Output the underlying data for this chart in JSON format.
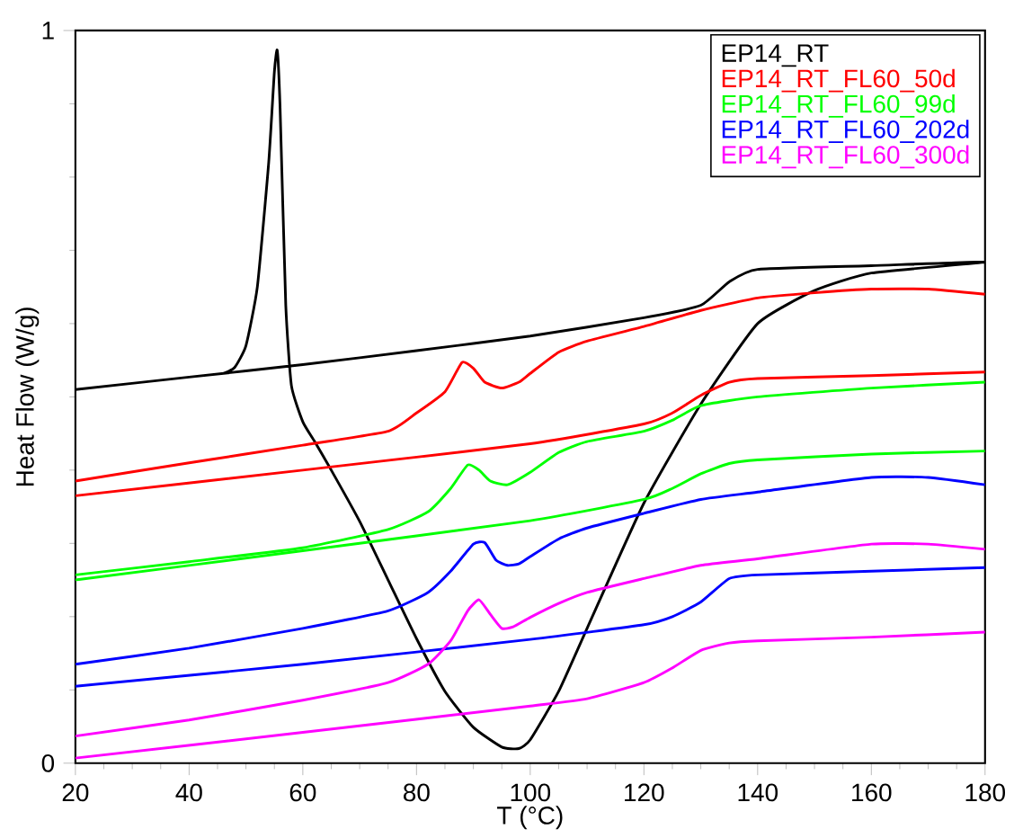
{
  "chart_data": {
    "type": "line",
    "xlabel": "T (°C)",
    "ylabel": "Heat Flow (W/g)",
    "xlim": [
      20,
      180
    ],
    "ylim": [
      0,
      1
    ],
    "xticks": [
      20,
      {
        "value": 25,
        "label": null
      },
      {
        "value": 30,
        "label": null
      },
      {
        "value": 35,
        "label": null
      },
      40,
      {
        "value": 45,
        "label": null
      },
      {
        "value": 50,
        "label": null
      },
      {
        "value": 55,
        "label": null
      },
      60,
      {
        "value": 65,
        "label": null
      },
      {
        "value": 70,
        "label": null
      },
      {
        "value": 75,
        "label": null
      },
      80,
      {
        "value": 85,
        "label": null
      },
      {
        "value": 90,
        "label": null
      },
      {
        "value": 95,
        "label": null
      },
      100,
      {
        "value": 105,
        "label": null
      },
      {
        "value": 110,
        "label": null
      },
      {
        "value": 115,
        "label": null
      },
      120,
      {
        "value": 125,
        "label": null
      },
      {
        "value": 130,
        "label": null
      },
      {
        "value": 135,
        "label": null
      },
      140,
      {
        "value": 145,
        "label": null
      },
      {
        "value": 150,
        "label": null
      },
      {
        "value": 155,
        "label": null
      },
      160,
      {
        "value": 165,
        "label": null
      },
      {
        "value": 170,
        "label": null
      },
      {
        "value": 175,
        "label": null
      },
      180
    ],
    "yticks": [
      0,
      {
        "value": 0.1,
        "label": null
      },
      {
        "value": 0.2,
        "label": null
      },
      {
        "value": 0.3,
        "label": null
      },
      {
        "value": 0.4,
        "label": null
      },
      {
        "value": 0.5,
        "label": null
      },
      {
        "value": 0.6,
        "label": null
      },
      {
        "value": 0.7,
        "label": null
      },
      {
        "value": 0.8,
        "label": null
      },
      {
        "value": 0.9,
        "label": null
      },
      1
    ],
    "grid": false,
    "legend": "top right",
    "marker": "none",
    "line_style": "solid",
    "series": [
      {
        "name": "EP14_RT",
        "color": "#000000",
        "x": [
          20,
          40,
          60,
          80,
          100,
          120,
          130,
          135,
          140,
          160,
          180,
          160,
          150,
          140,
          130,
          120,
          110,
          105,
          100,
          98,
          95,
          90,
          85,
          80,
          75,
          70,
          65,
          62,
          60,
          58,
          57,
          56,
          55.5,
          55,
          54,
          52,
          50,
          48,
          46
        ],
        "values": [
          0.51,
          0.527,
          0.544,
          0.563,
          0.583,
          0.608,
          0.625,
          0.657,
          0.674,
          0.679,
          0.684,
          0.669,
          0.645,
          0.6,
          0.49,
          0.355,
          0.184,
          0.098,
          0.032,
          0.02,
          0.022,
          0.049,
          0.098,
          0.17,
          0.25,
          0.33,
          0.4,
          0.44,
          0.466,
          0.515,
          0.625,
          0.895,
          0.973,
          0.944,
          0.82,
          0.65,
          0.57,
          0.54,
          0.532
        ]
      },
      {
        "name": "EP14_RT_FL60_50d",
        "color": "#ff0000",
        "x": [
          20,
          40,
          60,
          75,
          80,
          85,
          88,
          90,
          92,
          95,
          98,
          100,
          105,
          110,
          120,
          130,
          140,
          150,
          160,
          170,
          180
        ],
        "values": [
          0.385,
          0.41,
          0.434,
          0.453,
          0.478,
          0.507,
          0.547,
          0.539,
          0.52,
          0.512,
          0.52,
          0.532,
          0.561,
          0.576,
          0.596,
          0.618,
          0.635,
          0.642,
          0.647,
          0.647,
          0.64
        ]
      },
      {
        "color": "#ff0000",
        "x": [
          20,
          60,
          100,
          120,
          125,
          130,
          135,
          140,
          160,
          180
        ],
        "values": [
          0.365,
          0.4,
          0.436,
          0.463,
          0.478,
          0.502,
          0.52,
          0.525,
          0.529,
          0.534
        ]
      },
      {
        "name": "EP14_RT_FL60_99d",
        "color": "#00ff00",
        "x": [
          20,
          40,
          60,
          75,
          82,
          86,
          89,
          91,
          93,
          96,
          100,
          105,
          110,
          120,
          125,
          130,
          140,
          160,
          180
        ],
        "values": [
          0.257,
          0.275,
          0.294,
          0.319,
          0.343,
          0.375,
          0.407,
          0.4,
          0.385,
          0.38,
          0.397,
          0.424,
          0.439,
          0.453,
          0.468,
          0.488,
          0.5,
          0.512,
          0.52
        ]
      },
      {
        "color": "#00ff00",
        "x": [
          20,
          60,
          100,
          120,
          125,
          130,
          135,
          140,
          160,
          180
        ],
        "values": [
          0.25,
          0.29,
          0.331,
          0.36,
          0.375,
          0.395,
          0.409,
          0.414,
          0.422,
          0.426
        ]
      },
      {
        "name": "EP14_RT_FL60_202d",
        "color": "#0000ff",
        "x": [
          20,
          40,
          60,
          75,
          82,
          86,
          90,
          92,
          94,
          96,
          98,
          100,
          105,
          110,
          120,
          130,
          140,
          160,
          170,
          180
        ],
        "values": [
          0.135,
          0.157,
          0.184,
          0.208,
          0.233,
          0.262,
          0.299,
          0.301,
          0.277,
          0.27,
          0.272,
          0.282,
          0.306,
          0.321,
          0.341,
          0.36,
          0.37,
          0.39,
          0.39,
          0.38
        ]
      },
      {
        "color": "#0000ff",
        "x": [
          20,
          60,
          100,
          120,
          125,
          130,
          135,
          140,
          160,
          180
        ],
        "values": [
          0.105,
          0.135,
          0.169,
          0.189,
          0.2,
          0.22,
          0.252,
          0.257,
          0.262,
          0.267
        ]
      },
      {
        "name": "EP14_RT_FL60_300d",
        "color": "#ff00ff",
        "x": [
          20,
          40,
          60,
          75,
          82,
          86,
          89,
          91,
          93,
          95,
          97,
          100,
          105,
          110,
          120,
          130,
          140,
          160,
          170,
          180
        ],
        "values": [
          0.037,
          0.059,
          0.086,
          0.11,
          0.135,
          0.167,
          0.208,
          0.223,
          0.203,
          0.184,
          0.186,
          0.199,
          0.218,
          0.233,
          0.252,
          0.27,
          0.279,
          0.299,
          0.299,
          0.292
        ]
      },
      {
        "color": "#ff00ff",
        "x": [
          20,
          60,
          100,
          110,
          120,
          125,
          130,
          135,
          140,
          160,
          180
        ],
        "values": [
          0.007,
          0.042,
          0.078,
          0.088,
          0.11,
          0.13,
          0.154,
          0.164,
          0.167,
          0.172,
          0.179
        ]
      }
    ]
  }
}
